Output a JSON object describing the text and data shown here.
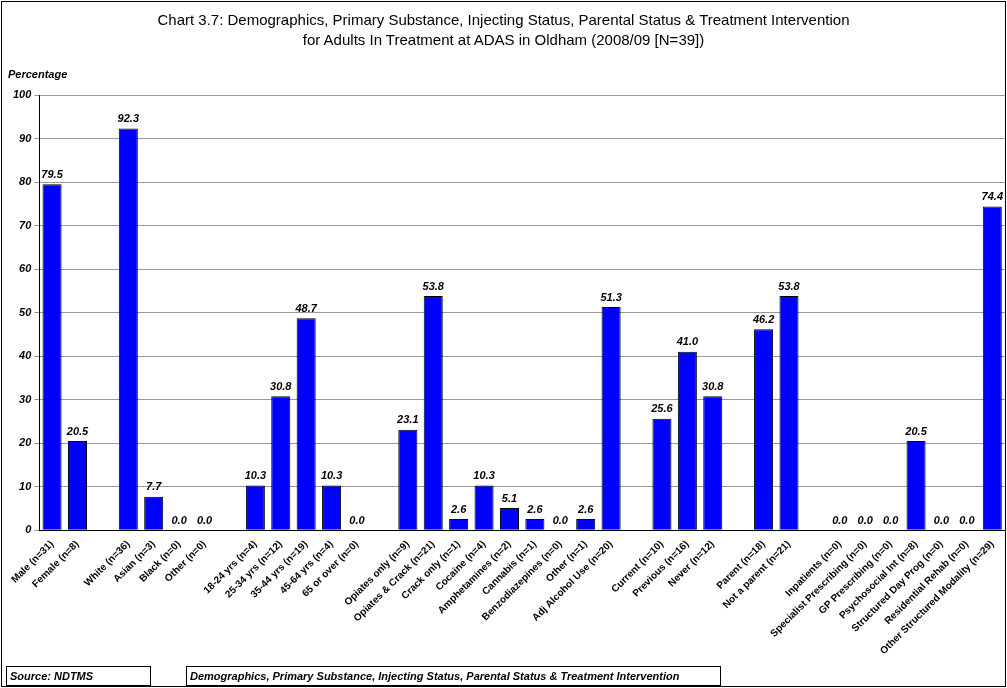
{
  "chart_data": {
    "type": "bar",
    "title": "Chart 3.7: Demographics, Primary Substance, Injecting Status, Parental Status & Treatment Intervention",
    "subtitle": "for Adults In Treatment at ADAS in Oldham (2008/09 [N=39])",
    "ylabel": "Percentage",
    "categories": [
      "Male (n=31)",
      "Female (n=8)",
      null,
      "White (n=36)",
      "Asian (n=3)",
      "Black (n=0)",
      "Other (n=0)",
      null,
      "18-24 yrs (n=4)",
      "25-34 yrs (n=12)",
      "35-44 yrs (n=19)",
      "45-64 yrs (n=4)",
      "65 or over (n=0)",
      null,
      "Opiates only (n=9)",
      "Opiates & Crack (n=21)",
      "Crack only (n=1)",
      "Cocaine (n=4)",
      "Amphetamines (n=2)",
      "Cannabis (n=1)",
      "Benzodiazepines (n=0)",
      "Other (n=1)",
      "Adj Alcohol Use (n=20)",
      null,
      "Current (n=10)",
      "Previous (n=16)",
      "Never (n=12)",
      null,
      "Parent (n=18)",
      "Not a parent (n=21)",
      null,
      "Inpatients (n=0)",
      "Specialist Prescribing (n=0)",
      "GP Prescribing (n=0)",
      "Psychosocial Int (n=8)",
      "Structured Day Prog (n=0)",
      "Residential Rehab (n=0)",
      "Other Structured Modality (n=29)"
    ],
    "values": [
      79.5,
      20.5,
      null,
      92.3,
      7.7,
      0,
      0,
      null,
      10.3,
      30.8,
      48.7,
      10.3,
      0,
      null,
      23.1,
      53.8,
      2.6,
      10.3,
      5.1,
      2.6,
      0,
      2.6,
      51.3,
      null,
      25.6,
      41.0,
      30.8,
      null,
      46.2,
      53.8,
      null,
      0,
      0,
      0,
      20.5,
      0,
      0,
      74.4
    ],
    "value_labels": [
      "79.5",
      "20.5",
      null,
      "92.3",
      "7.7",
      "0.0",
      "0.0",
      null,
      "10.3",
      "30.8",
      "48.7",
      "10.3",
      "0.0",
      null,
      "23.1",
      "53.8",
      "2.6",
      "10.3",
      "5.1",
      "2.6",
      "0.0",
      "2.6",
      "51.3",
      null,
      "25.6",
      "41.0",
      "30.8",
      null,
      "46.2",
      "53.8",
      null,
      "0.0",
      "0.0",
      "0.0",
      "20.5",
      "0.0",
      "0.0",
      "74.4"
    ],
    "color": "#0000ff",
    "ylim": [
      0,
      100
    ],
    "yticks": [
      0,
      10,
      20,
      30,
      40,
      50,
      60,
      70,
      80,
      90,
      100
    ],
    "grid": "y",
    "annotations": [
      "Source: NDTMS",
      "Demographics, Primary Substance, Injecting Status, Parental Status & Treatment Intervention"
    ]
  }
}
